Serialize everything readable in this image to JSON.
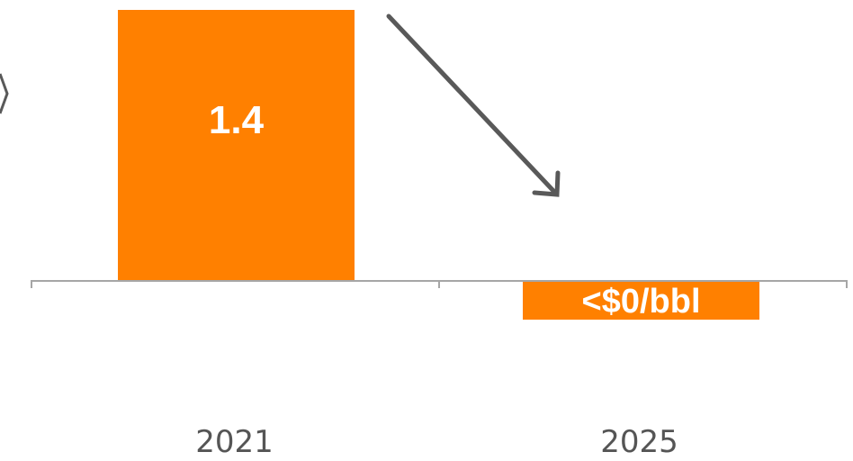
{
  "chart_data": {
    "type": "bar",
    "categories": [
      "2021",
      "2025"
    ],
    "values": [
      1.4,
      -0.2
    ],
    "data_labels": [
      "1.4",
      "<$0/bbl"
    ],
    "title": "",
    "xlabel": "",
    "ylabel": "",
    "ylim": [
      -0.3,
      1.5
    ],
    "grid": false,
    "legend": "none",
    "annotation": "downward-trend-arrow",
    "colors": {
      "bar": "#ff8000",
      "axis": "#a6a6a6",
      "arrow": "#595959",
      "label": "#ffffff",
      "tick_label": "#555555"
    }
  }
}
